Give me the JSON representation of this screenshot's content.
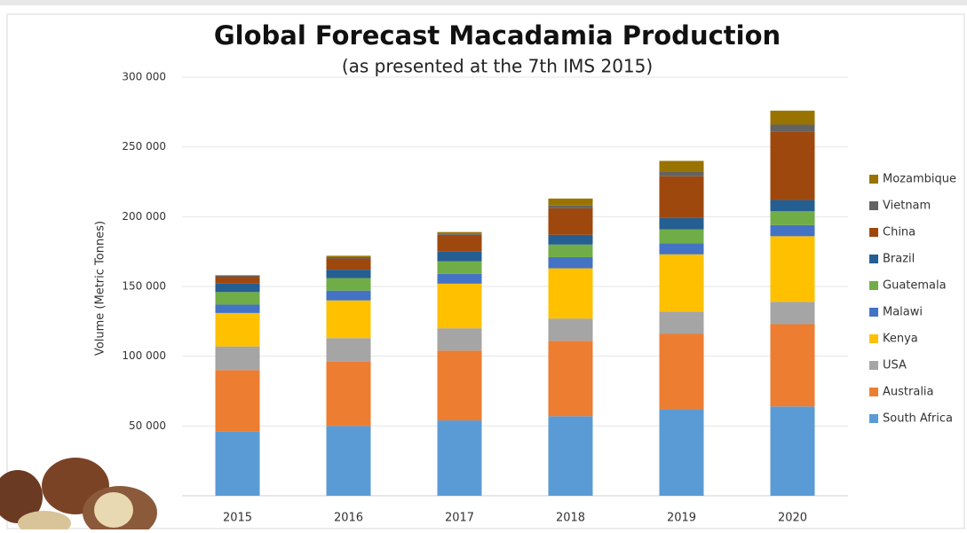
{
  "chart_data": {
    "type": "stacked-bar",
    "title": "Global Forecast Macadamia Production",
    "subtitle": "(as presented at the 7th IMS 2015)",
    "y_label": "Volume (Metric Tonnes)",
    "categories": [
      "2015",
      "2016",
      "2017",
      "2018",
      "2019",
      "2020"
    ],
    "series": [
      {
        "name": "South Africa",
        "color": "#5b9bd5",
        "values": [
          46000,
          50000,
          54000,
          57000,
          62000,
          64000
        ]
      },
      {
        "name": "Australia",
        "color": "#ed7d31",
        "values": [
          44000,
          46000,
          50000,
          54000,
          54000,
          59000
        ]
      },
      {
        "name": "USA",
        "color": "#a5a5a5",
        "values": [
          17000,
          17000,
          16000,
          16000,
          16000,
          16000
        ]
      },
      {
        "name": "Kenya",
        "color": "#ffc000",
        "values": [
          24000,
          27000,
          32000,
          36000,
          41000,
          47000
        ]
      },
      {
        "name": "Malawi",
        "color": "#4472c4",
        "values": [
          6000,
          7000,
          7000,
          8000,
          8000,
          8000
        ]
      },
      {
        "name": "Guatemala",
        "color": "#70ad47",
        "values": [
          9000,
          9000,
          9000,
          9000,
          10000,
          10000
        ]
      },
      {
        "name": "Brazil",
        "color": "#255e91",
        "values": [
          6000,
          6000,
          7000,
          7000,
          8000,
          8000
        ]
      },
      {
        "name": "China",
        "color": "#9e480e",
        "values": [
          5000,
          8000,
          12000,
          19000,
          30000,
          49000
        ]
      },
      {
        "name": "Vietnam",
        "color": "#636363",
        "values": [
          1000,
          1000,
          1000,
          2000,
          3000,
          5000
        ]
      },
      {
        "name": "Mozambique",
        "color": "#997300",
        "values": [
          0,
          1000,
          1000,
          5000,
          8000,
          10000
        ]
      }
    ],
    "ylim": [
      0,
      300000
    ],
    "yticks": [
      {
        "value": 50000,
        "label": "50 000"
      },
      {
        "value": 100000,
        "label": "100 000"
      },
      {
        "value": 150000,
        "label": "150 000"
      },
      {
        "value": 200000,
        "label": "200 000"
      },
      {
        "value": 250000,
        "label": "250 000"
      },
      {
        "value": 300000,
        "label": "300 000"
      }
    ],
    "grid": true,
    "legend": "right"
  }
}
